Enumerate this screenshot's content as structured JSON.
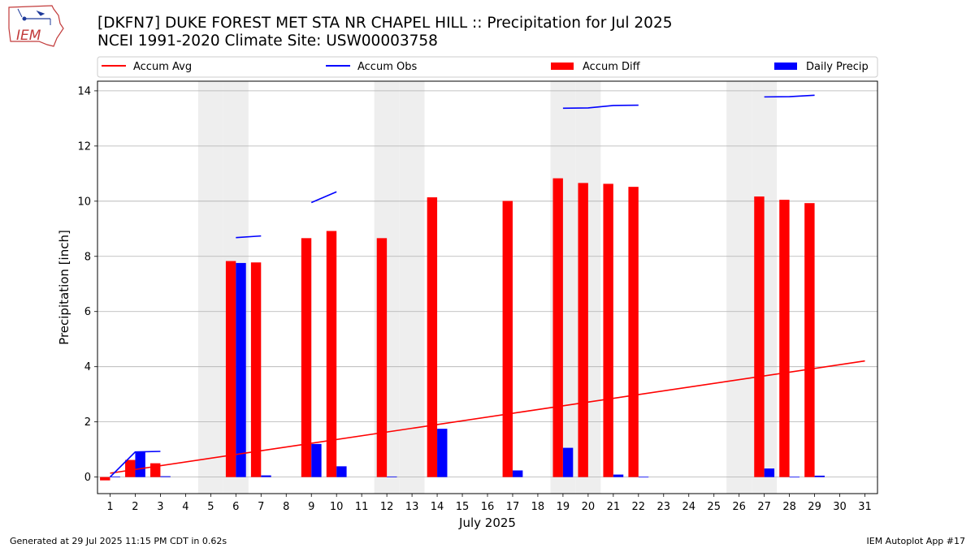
{
  "header": {
    "title_line1": "[DKFN7] DUKE FOREST MET STA NR CHAPEL HILL :: Precipitation for Jul 2025",
    "title_line2": "NCEI 1991-2020 Climate Site: USW00003758",
    "logo_text": "IEM"
  },
  "footer": {
    "left": "Generated at 29 Jul 2025 11:15 PM CDT in 0.62s",
    "right": "IEM Autoplot App #17"
  },
  "colors": {
    "accum_avg": "#ff0000",
    "accum_obs": "#0000ff",
    "accum_diff": "#ff0000",
    "daily_precip": "#0000ff",
    "weekend_shade": "#eeeeee",
    "grid": "#b0b0b0"
  },
  "chart_data": {
    "type": "bar",
    "xlabel": "July 2025",
    "ylabel": "Precipitation [inch]",
    "xlim": [
      0.5,
      31.5
    ],
    "ylim": [
      -0.6,
      14.35
    ],
    "yticks": [
      0,
      2,
      4,
      6,
      8,
      10,
      12,
      14
    ],
    "grid": "y",
    "legend_position": "top",
    "shaded_days": [
      5,
      6,
      12,
      13,
      19,
      20,
      26,
      27
    ],
    "days": [
      1,
      2,
      3,
      4,
      5,
      6,
      7,
      8,
      9,
      10,
      11,
      12,
      13,
      14,
      15,
      16,
      17,
      18,
      19,
      20,
      21,
      22,
      23,
      24,
      25,
      26,
      27,
      28,
      29,
      30,
      31
    ],
    "legend": [
      {
        "name": "Accum Avg",
        "kind": "line",
        "color": "#ff0000"
      },
      {
        "name": "Accum Obs",
        "kind": "line",
        "color": "#0000ff"
      },
      {
        "name": "Accum Diff",
        "kind": "bar",
        "color": "#ff0000"
      },
      {
        "name": "Daily Precip",
        "kind": "bar",
        "color": "#0000ff"
      }
    ],
    "series": [
      {
        "name": "Accum Avg",
        "kind": "line",
        "x": [
          1,
          31
        ],
        "values": [
          0.14,
          4.21
        ]
      },
      {
        "name": "Accum Obs",
        "kind": "line",
        "segments": [
          {
            "x": [
              1,
              2,
              3
            ],
            "values": [
              0.0,
              0.91,
              0.93
            ]
          },
          {
            "x": [
              6,
              7
            ],
            "values": [
              8.68,
              8.74
            ]
          },
          {
            "x": [
              9,
              10
            ],
            "values": [
              9.95,
              10.34
            ]
          },
          {
            "x": [
              19,
              20,
              21,
              22
            ],
            "values": [
              13.37,
              13.38,
              13.47,
              13.48
            ]
          },
          {
            "x": [
              27,
              28,
              29
            ],
            "values": [
              13.78,
              13.79,
              13.84
            ]
          }
        ]
      },
      {
        "name": "Accum Diff",
        "kind": "bar",
        "x": [
          1,
          2,
          3,
          6,
          7,
          9,
          10,
          12,
          14,
          17,
          19,
          20,
          21,
          22,
          27,
          28,
          29
        ],
        "values": [
          -0.12,
          0.62,
          0.5,
          7.83,
          7.78,
          8.66,
          8.92,
          8.66,
          10.14,
          10.01,
          10.83,
          10.66,
          10.63,
          10.52,
          10.17,
          10.05,
          9.93
        ]
      },
      {
        "name": "Daily Precip",
        "kind": "bar",
        "x": [
          1,
          2,
          3,
          6,
          7,
          9,
          10,
          12,
          14,
          17,
          19,
          21,
          22,
          27,
          28,
          29
        ],
        "values": [
          0.02,
          0.9,
          0.03,
          7.76,
          0.06,
          1.2,
          0.39,
          0.02,
          1.75,
          0.24,
          1.06,
          0.09,
          0.01,
          0.31,
          0.01,
          0.05
        ]
      }
    ]
  }
}
